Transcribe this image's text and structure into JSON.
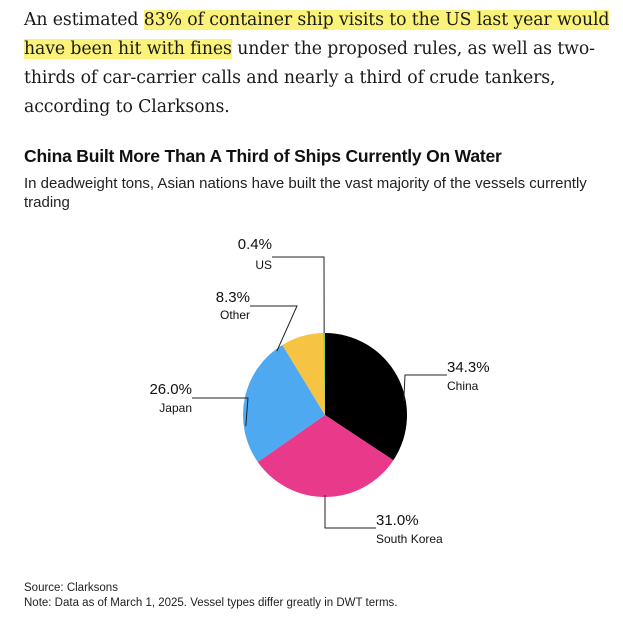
{
  "article": {
    "text_before": "An estimated ",
    "highlight": "83% of container ship visits to the US last year would have been hit with fines",
    "text_after": " under the proposed rules, as well as two-thirds of car-carrier calls and nearly a third of crude tankers, according to Clarksons."
  },
  "chart_data": {
    "type": "pie",
    "title": "China Built More Than A Third of Ships Currently On Water",
    "subtitle": "In deadweight tons, Asian nations have built the vast majority of the vessels currently trading",
    "unit": "%",
    "slices": [
      {
        "label": "China",
        "value": 34.3,
        "value_label": "34.3%",
        "color": "#000000"
      },
      {
        "label": "South Korea",
        "value": 31.0,
        "value_label": "31.0%",
        "color": "#e8398a"
      },
      {
        "label": "Japan",
        "value": 26.0,
        "value_label": "26.0%",
        "color": "#4ea9f1"
      },
      {
        "label": "Other",
        "value": 8.3,
        "value_label": "8.3%",
        "color": "#f6c342"
      },
      {
        "label": "US",
        "value": 0.4,
        "value_label": "0.4%",
        "color": "#8fd14f"
      }
    ],
    "source": "Source: Clarksons",
    "note": "Note: Data as of March 1, 2025. Vessel types differ greatly in DWT terms."
  }
}
